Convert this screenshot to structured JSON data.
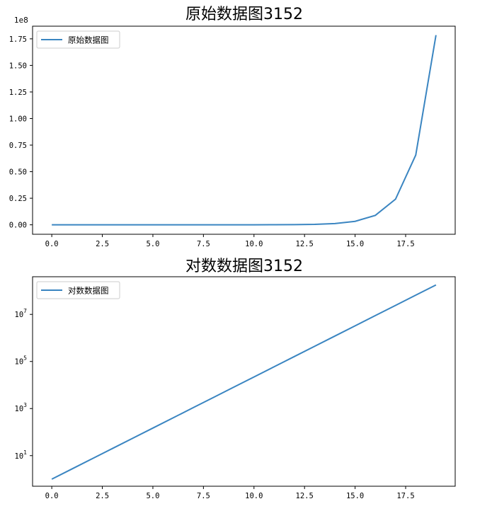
{
  "colors": {
    "series": "#3a85c1",
    "frame": "#000000"
  },
  "chart_data": [
    {
      "type": "line",
      "title": "原始数据图3152",
      "legend": {
        "label": "原始数据图",
        "placement": "top-left"
      },
      "yscale": "linear",
      "y_offset_label": "1e8",
      "xlim": [
        -0.95,
        19.95
      ],
      "ylim": [
        -8900000,
        186900000
      ],
      "xticks": [
        0,
        2.5,
        5,
        7.5,
        10,
        12.5,
        15,
        17.5
      ],
      "xtick_labels": [
        "0.0",
        "2.5",
        "5.0",
        "7.5",
        "10.0",
        "12.5",
        "15.0",
        "17.5"
      ],
      "yticks": [
        0,
        25000000,
        50000000,
        75000000,
        100000000,
        125000000,
        150000000,
        175000000
      ],
      "ytick_labels": [
        "0.00",
        "0.25",
        "0.50",
        "0.75",
        "1.00",
        "1.25",
        "1.50",
        "1.75"
      ],
      "x": [
        0,
        1,
        2,
        3,
        4,
        5,
        6,
        7,
        8,
        9,
        10,
        11,
        12,
        13,
        14,
        15,
        16,
        17,
        18,
        19
      ],
      "y": [
        1,
        2.72,
        7.39,
        20.1,
        54.6,
        148.4,
        403.4,
        1096.6,
        2981,
        8103,
        22026,
        59874,
        162755,
        442413,
        1202604,
        3269017,
        8886111,
        24154953,
        65659969,
        178482301
      ]
    },
    {
      "type": "line",
      "title": "对数数据图3152",
      "legend": {
        "label": "对数数据图",
        "placement": "top-left"
      },
      "yscale": "log",
      "xlim": [
        -0.95,
        19.95
      ],
      "ylim_log10": [
        -0.3,
        8.6
      ],
      "xticks": [
        0,
        2.5,
        5,
        7.5,
        10,
        12.5,
        15,
        17.5
      ],
      "xtick_labels": [
        "0.0",
        "2.5",
        "5.0",
        "7.5",
        "10.0",
        "12.5",
        "15.0",
        "17.5"
      ],
      "yticks": [
        10,
        1000,
        100000,
        10000000
      ],
      "ytick_bases": [
        "10",
        "10",
        "10",
        "10"
      ],
      "ytick_exponents": [
        "1",
        "3",
        "5",
        "7"
      ],
      "x": [
        0,
        1,
        2,
        3,
        4,
        5,
        6,
        7,
        8,
        9,
        10,
        11,
        12,
        13,
        14,
        15,
        16,
        17,
        18,
        19
      ],
      "y": [
        1,
        2.72,
        7.39,
        20.1,
        54.6,
        148.4,
        403.4,
        1096.6,
        2981,
        8103,
        22026,
        59874,
        162755,
        442413,
        1202604,
        3269017,
        8886111,
        24154953,
        65659969,
        178482301
      ]
    }
  ]
}
